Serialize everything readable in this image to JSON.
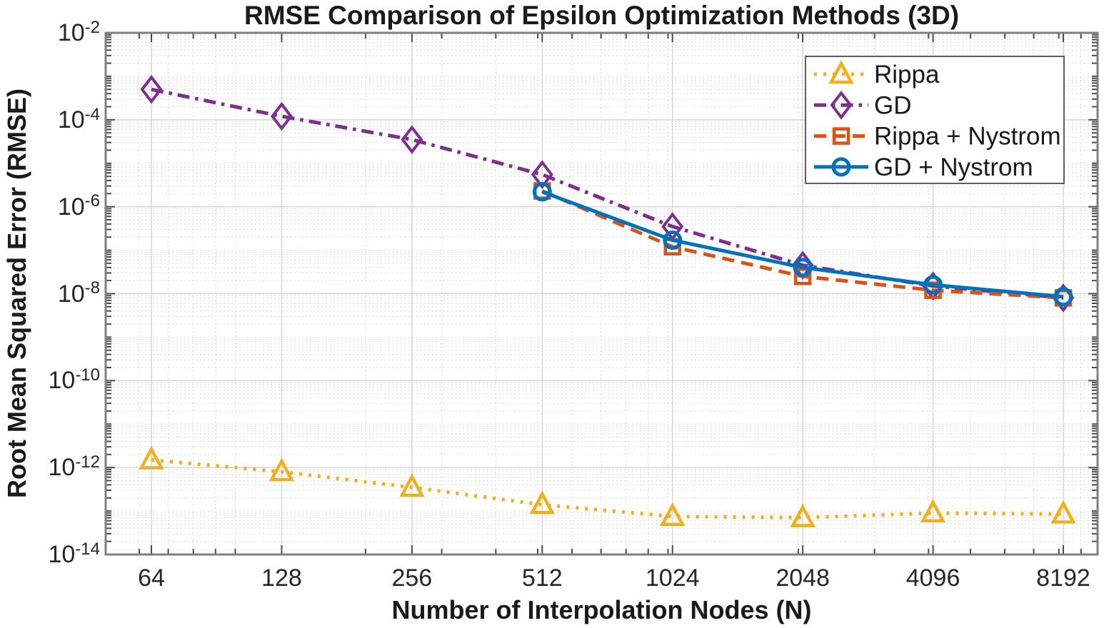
{
  "figure": {
    "background": "#ffffff"
  },
  "chart_data": {
    "type": "line",
    "title": "RMSE Comparison of Epsilon Optimization Methods (3D)",
    "xlabel": "Number of Interpolation Nodes (N)",
    "ylabel": "Root Mean Squared Error (RMSE)",
    "x_scale": "log2",
    "y_scale": "log10",
    "xlim": [
      50,
      9800
    ],
    "ylim": [
      1e-14,
      0.01
    ],
    "x_ticks": [
      64,
      128,
      256,
      512,
      1024,
      2048,
      4096,
      8192
    ],
    "y_tick_exponents": [
      -2,
      -4,
      -6,
      -8,
      -10,
      -12,
      -14
    ],
    "grid": {
      "major": true,
      "minor": true,
      "major_color": "#d6d6d6",
      "minor_color": "#dedede"
    },
    "axes_color": "#7f7f7f",
    "tick_color": "#4a4a4a",
    "legend": {
      "position": "northeast",
      "border_color": "#4d4d4d",
      "background": "#ffffff"
    },
    "series": [
      {
        "name": "Rippa",
        "color": "#EDB120",
        "line_style": "dotted",
        "marker": "triangle-up",
        "x": [
          64,
          128,
          256,
          512,
          1024,
          2048,
          4096,
          8192
        ],
        "y": [
          1.5e-12,
          8e-13,
          3.5e-13,
          1.4e-13,
          7.5e-14,
          7e-14,
          9e-14,
          8.5e-14
        ]
      },
      {
        "name": "GD",
        "color": "#7E2F8E",
        "line_style": "dash-dot",
        "marker": "diamond",
        "x": [
          64,
          128,
          256,
          512,
          1024,
          2048,
          4096,
          8192
        ],
        "y": [
          0.0005,
          0.00012,
          3.5e-05,
          5.5e-06,
          3.5e-07,
          4.5e-08,
          1.5e-08,
          8e-09
        ]
      },
      {
        "name": "Rippa + Nystrom",
        "color": "#D95319",
        "line_style": "dashed",
        "marker": "square",
        "x": [
          512,
          1024,
          2048,
          4096,
          8192
        ],
        "y": [
          2.3e-06,
          1.2e-07,
          2.5e-08,
          1.2e-08,
          8e-09
        ]
      },
      {
        "name": "GD + Nystrom",
        "color": "#0072BD",
        "line_style": "solid",
        "marker": "circle",
        "x": [
          512,
          1024,
          2048,
          4096,
          8192
        ],
        "y": [
          2.2e-06,
          1.7e-07,
          4e-08,
          1.6e-08,
          8.5e-09
        ]
      }
    ]
  }
}
